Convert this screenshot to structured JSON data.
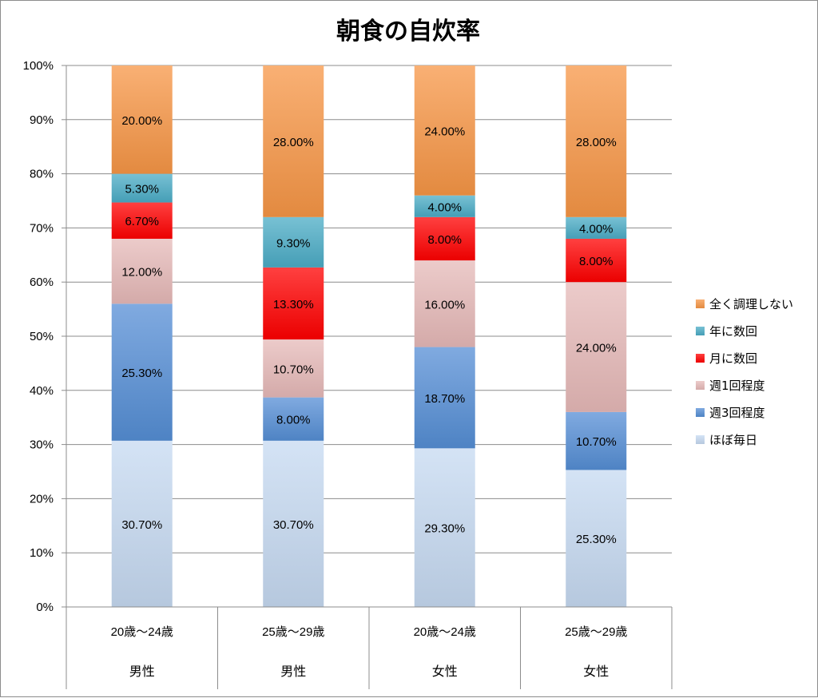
{
  "chart_data": {
    "type": "bar",
    "stacked": true,
    "percent_stacked": true,
    "title": "朝食の自炊率",
    "categories": [
      "20歳〜24歳",
      "25歳〜29歳",
      "20歳〜24歳",
      "25歳〜29歳"
    ],
    "groups": [
      "男性",
      "男性",
      "女性",
      "女性"
    ],
    "ylim": [
      0,
      100
    ],
    "yticks": [
      "0%",
      "10%",
      "20%",
      "30%",
      "40%",
      "50%",
      "60%",
      "70%",
      "80%",
      "90%",
      "100%"
    ],
    "grid": true,
    "legend_position": "right",
    "series": [
      {
        "name": "ほぼ毎日",
        "color": "#c6d9f1",
        "values": [
          30.7,
          30.7,
          29.3,
          25.3
        ],
        "labels": [
          "30.70%",
          "30.70%",
          "29.30%",
          "25.30%"
        ]
      },
      {
        "name": "週3回程度",
        "color": "#558ed5",
        "values": [
          25.3,
          8.0,
          18.7,
          10.7
        ],
        "labels": [
          "25.30%",
          "8.00%",
          "18.70%",
          "10.70%"
        ]
      },
      {
        "name": "週1回程度",
        "color": "#e6b9b8",
        "values": [
          12.0,
          10.7,
          16.0,
          24.0
        ],
        "labels": [
          "12.00%",
          "10.70%",
          "16.00%",
          "24.00%"
        ]
      },
      {
        "name": "月に数回",
        "color": "#ff0000",
        "values": [
          6.7,
          13.3,
          8.0,
          8.0
        ],
        "labels": [
          "6.70%",
          "13.30%",
          "8.00%",
          "8.00%"
        ]
      },
      {
        "name": "年に数回",
        "color": "#4bacc6",
        "values": [
          5.3,
          9.3,
          4.0,
          4.0
        ],
        "labels": [
          "5.30%",
          "9.30%",
          "4.00%",
          "4.00%"
        ]
      },
      {
        "name": "全く調理しない",
        "color": "#f79646",
        "values": [
          20.0,
          28.0,
          24.0,
          28.0
        ],
        "labels": [
          "20.00%",
          "28.00%",
          "24.00%",
          "28.00%"
        ]
      }
    ],
    "legend_order": [
      "全く調理しない",
      "年に数回",
      "月に数回",
      "週1回程度",
      "週3回程度",
      "ほぼ毎日"
    ]
  }
}
